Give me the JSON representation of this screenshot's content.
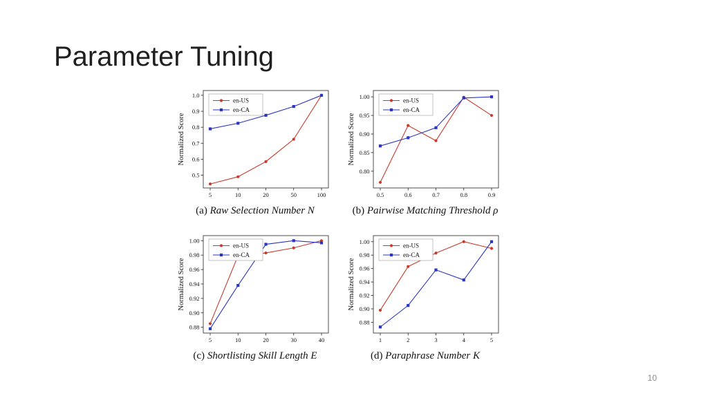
{
  "slide": {
    "title": "Parameter Tuning",
    "page_number": "10"
  },
  "colors": {
    "en_us": "#c93a2b",
    "en_ca": "#2a35c4"
  },
  "chart_data": [
    {
      "type": "line",
      "caption_label": "(a)",
      "caption_title": "Raw Selection Number N",
      "xlabel": "",
      "ylabel": "Normalized Score",
      "categories": [
        "5",
        "10",
        "20",
        "50",
        "100"
      ],
      "yticks": [
        0.5,
        0.6,
        0.7,
        0.8,
        0.9,
        1.0
      ],
      "ytick_decimals": 1,
      "ylim": [
        0.42,
        1.03
      ],
      "grid": false,
      "legend_position": "top-left",
      "series": [
        {
          "name": "en-US",
          "marker": "circle",
          "color_key": "en_us",
          "values": [
            0.445,
            0.49,
            0.585,
            0.725,
            1.0
          ]
        },
        {
          "name": "en-CA",
          "marker": "square",
          "color_key": "en_ca",
          "values": [
            0.79,
            0.825,
            0.875,
            0.93,
            1.0
          ]
        }
      ]
    },
    {
      "type": "line",
      "caption_label": "(b)",
      "caption_title": "Pairwise Matching Threshold ρ",
      "xlabel": "",
      "ylabel": "Normalized Score",
      "categories": [
        "0.5",
        "0.6",
        "0.7",
        "0.8",
        "0.9"
      ],
      "yticks": [
        0.8,
        0.85,
        0.9,
        0.95,
        1.0
      ],
      "ytick_decimals": 2,
      "ylim": [
        0.755,
        1.017
      ],
      "grid": false,
      "legend_position": "top-left",
      "series": [
        {
          "name": "en-US",
          "marker": "circle",
          "color_key": "en_us",
          "values": [
            0.77,
            0.923,
            0.882,
            0.999,
            0.95
          ]
        },
        {
          "name": "en-CA",
          "marker": "square",
          "color_key": "en_ca",
          "values": [
            0.868,
            0.89,
            0.917,
            0.997,
            1.0
          ]
        }
      ]
    },
    {
      "type": "line",
      "caption_label": "(c)",
      "caption_title": "Shortlisting Skill Length E",
      "xlabel": "",
      "ylabel": "Normalized Score",
      "categories": [
        "5",
        "10",
        "20",
        "30",
        "40"
      ],
      "yticks": [
        0.88,
        0.9,
        0.92,
        0.94,
        0.96,
        0.98,
        1.0
      ],
      "ytick_decimals": 2,
      "ylim": [
        0.872,
        1.007
      ],
      "grid": false,
      "legend_position": "top-left",
      "series": [
        {
          "name": "en-US",
          "marker": "circle",
          "color_key": "en_us",
          "values": [
            0.885,
            0.979,
            0.983,
            0.99,
            1.0
          ]
        },
        {
          "name": "en-CA",
          "marker": "square",
          "color_key": "en_ca",
          "values": [
            0.878,
            0.938,
            0.995,
            1.0,
            0.997
          ]
        }
      ]
    },
    {
      "type": "line",
      "caption_label": "(d)",
      "caption_title": "Paraphrase Number K",
      "xlabel": "",
      "ylabel": "Normalized Score",
      "categories": [
        "1",
        "2",
        "3",
        "4",
        "5"
      ],
      "yticks": [
        0.88,
        0.9,
        0.92,
        0.94,
        0.96,
        0.98,
        1.0
      ],
      "ytick_decimals": 2,
      "ylim": [
        0.864,
        1.009
      ],
      "grid": false,
      "legend_position": "top-left",
      "series": [
        {
          "name": "en-US",
          "marker": "circle",
          "color_key": "en_us",
          "values": [
            0.898,
            0.963,
            0.983,
            1.0,
            0.99
          ]
        },
        {
          "name": "en-CA",
          "marker": "square",
          "color_key": "en_ca",
          "values": [
            0.873,
            0.905,
            0.958,
            0.943,
            1.0
          ]
        }
      ]
    }
  ]
}
